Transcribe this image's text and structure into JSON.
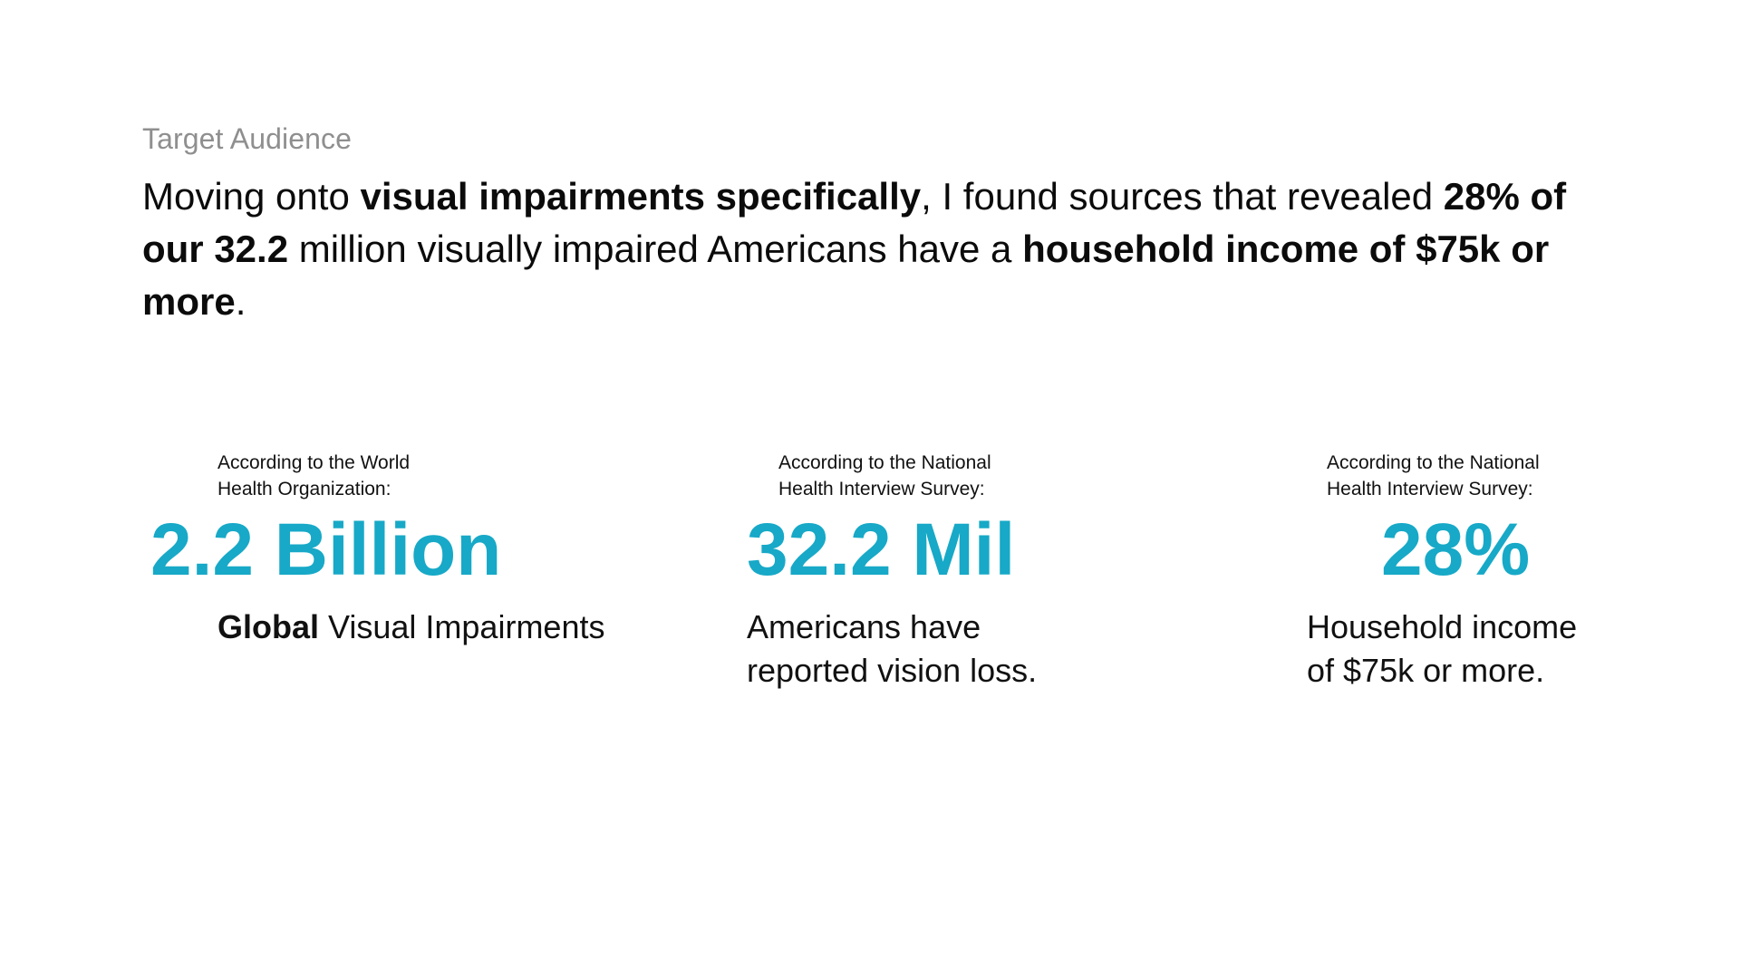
{
  "slide": {
    "eyebrow": "Target Audience",
    "headline": {
      "p1": "Moving onto ",
      "b1": "visual impairments specifically",
      "p2": ", I found sources that revealed ",
      "b2": "28% of our 32.2",
      "p3": " million visually impaired Americans have a ",
      "b3": "household income of $75k or more",
      "p4": "."
    },
    "accent_color": "#17a9c7"
  },
  "stats": [
    {
      "source_line1": "According to the World",
      "source_line2": "Health Organization:",
      "value": "2.2 Billion",
      "desc_bold": "Global",
      "desc_rest": " Visual Impairments"
    },
    {
      "source_line1": "According to the National",
      "source_line2": "Health Interview Survey:",
      "value": "32.2 Mil",
      "desc_line1": "Americans have",
      "desc_line2": "reported vision loss."
    },
    {
      "source_line1": "According to the National",
      "source_line2": "Health Interview Survey:",
      "value": "28%",
      "desc_line1": "Household income",
      "desc_line2": "of $75k or more."
    }
  ]
}
